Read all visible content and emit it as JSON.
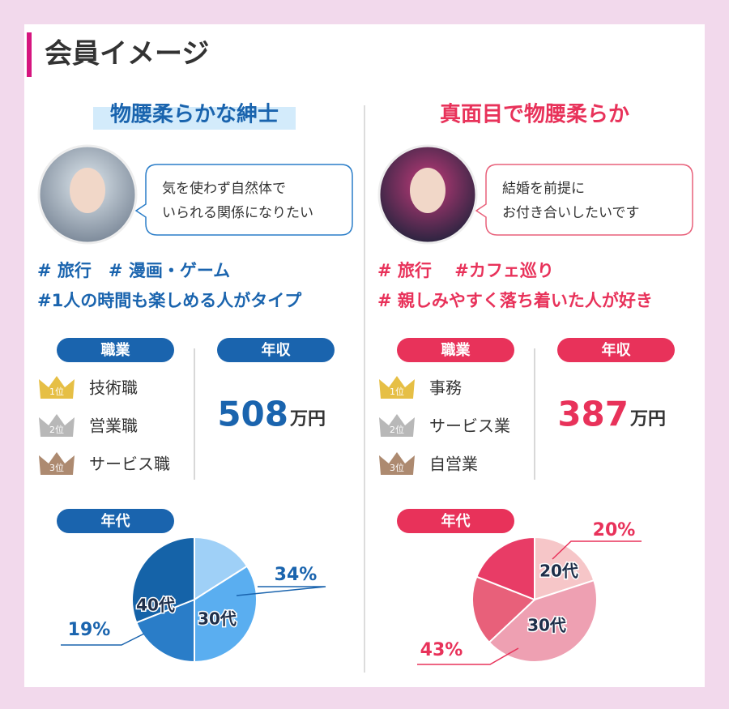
{
  "title": "会員イメージ",
  "profiles": [
    {
      "heading": "物腰柔らかな紳士",
      "quote": [
        "気を使わず自然体で",
        "いられる関係になりたい"
      ],
      "tags": [
        "# 旅行　# 漫画・ゲーム",
        "#1人の時間も楽しめる人がタイプ"
      ],
      "job_label": "職業",
      "jobs": [
        {
          "rank": "1位",
          "name": "技術職"
        },
        {
          "rank": "2位",
          "name": "営業職"
        },
        {
          "rank": "3位",
          "name": "サービス職"
        }
      ],
      "income_label": "年収",
      "income": "508",
      "income_unit": "万円",
      "age_label": "年代"
    },
    {
      "heading": "真面目で物腰柔らか",
      "quote": [
        "結婚を前提に",
        "お付き合いしたいです"
      ],
      "tags": [
        "# 旅行　 #カフェ巡り",
        "# 親しみやすく落ち着いた人が好き"
      ],
      "job_label": "職業",
      "jobs": [
        {
          "rank": "1位",
          "name": "事務"
        },
        {
          "rank": "2位",
          "name": "サービス業"
        },
        {
          "rank": "3位",
          "name": "自営業"
        }
      ],
      "income_label": "年収",
      "income": "387",
      "income_unit": "万円",
      "age_label": "年代"
    }
  ],
  "chart_data": [
    {
      "type": "pie",
      "categories": [
        null,
        "30代",
        "40代",
        null
      ],
      "values": [
        16,
        34,
        19,
        31
      ],
      "value_labels": [
        null,
        "34%",
        "19%",
        null
      ],
      "colors": [
        "#9fd0f7",
        "#5aaef0",
        "#2a7dc8",
        "#1563a8"
      ]
    },
    {
      "type": "pie",
      "categories": [
        "20代",
        "30代",
        null,
        null
      ],
      "values": [
        20,
        43,
        18,
        19
      ],
      "value_labels": [
        "20%",
        "43%",
        null,
        null
      ],
      "colors": [
        "#f6c6c8",
        "#eea0b2",
        "#e8607a",
        "#e83c66"
      ]
    }
  ]
}
